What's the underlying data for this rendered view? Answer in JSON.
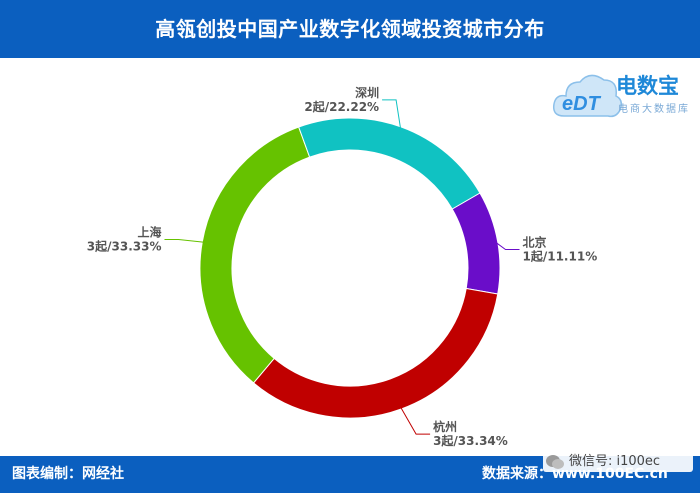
{
  "header": {
    "title": "高瓴创投中国产业数字化领域投资城市分布"
  },
  "logo": {
    "brand": "电数宝",
    "sub": "电商大数据库",
    "mark": "eDT"
  },
  "footer": {
    "left": "图表编制：网经社",
    "right": "数据来源：",
    "right_tail": "www.100EC.cn"
  },
  "watermark": {
    "text": "微信号: i100ec"
  },
  "colors": {
    "header": "#0b5fbf"
  },
  "chart_data": {
    "type": "pie",
    "donut": true,
    "categories": [
      "北京",
      "杭州",
      "上海",
      "深圳"
    ],
    "values": [
      1,
      3,
      3,
      2
    ],
    "value_labels": [
      "1起/11.11%",
      "3起/33.34%",
      "3起/33.33%",
      "2起/22.22%"
    ],
    "colors": [
      "#6a0dc9",
      "#c00000",
      "#66c200",
      "#10c2c2"
    ]
  }
}
